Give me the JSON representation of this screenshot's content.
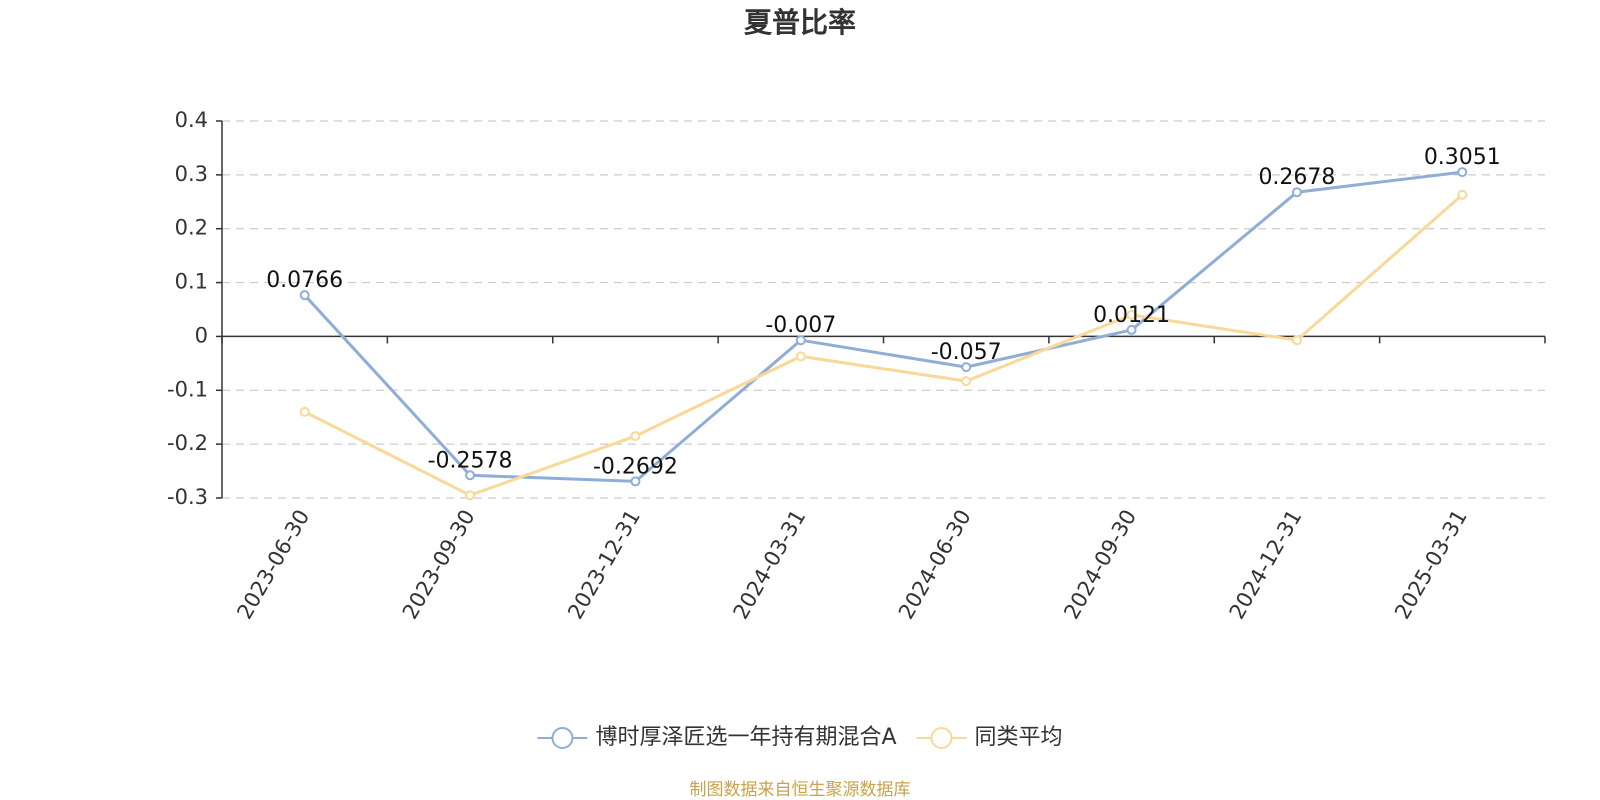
{
  "chart_data": {
    "type": "line",
    "title": "夏普比率",
    "categories": [
      "2023-06-30",
      "2023-09-30",
      "2023-12-31",
      "2024-03-31",
      "2024-06-30",
      "2024-09-30",
      "2024-12-31",
      "2025-03-31"
    ],
    "series": [
      {
        "name": "博时厚泽匠选一年持有期混合A",
        "color": "#8eaed8",
        "values": [
          0.0766,
          -0.2578,
          -0.2692,
          -0.007,
          -0.057,
          0.0121,
          0.2678,
          0.3051
        ]
      },
      {
        "name": "同类平均",
        "color": "#f9d898",
        "values": [
          -0.14,
          -0.295,
          -0.185,
          -0.037,
          -0.083,
          0.04,
          -0.007,
          0.263
        ]
      }
    ],
    "ylim": [
      -0.3,
      0.4
    ],
    "yticks": [
      -0.3,
      -0.2,
      -0.1,
      0,
      0.1,
      0.2,
      0.3,
      0.4
    ],
    "grid": true,
    "legend": "bottom",
    "source": "制图数据来自恒生聚源数据库"
  }
}
